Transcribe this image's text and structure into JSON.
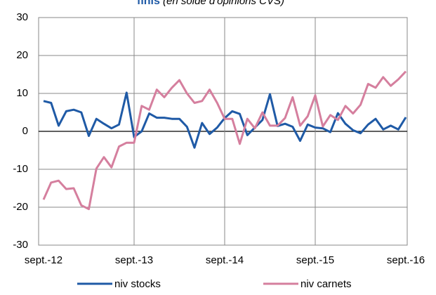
{
  "chart_data": {
    "type": "line",
    "title": "finis",
    "subtitle": "(en solde d'opinions CVS)",
    "categories": [
      "sept.-12",
      null,
      null,
      null,
      null,
      null,
      null,
      null,
      null,
      null,
      null,
      null,
      "sept.-13",
      null,
      null,
      null,
      null,
      null,
      null,
      null,
      null,
      null,
      null,
      null,
      "sept.-14",
      null,
      null,
      null,
      null,
      null,
      null,
      null,
      null,
      null,
      null,
      null,
      "sept.-15",
      null,
      null,
      null,
      null,
      null,
      null,
      null,
      null,
      null,
      null,
      null,
      "sept.-16"
    ],
    "series": [
      {
        "name": "niv stocks",
        "color": "#1f5aa6",
        "values": [
          8,
          7.5,
          1.5,
          5.3,
          5.7,
          5,
          -1.2,
          3.3,
          2,
          0.8,
          1.8,
          10.2,
          -1.5,
          0,
          4.7,
          3.6,
          3.6,
          3.3,
          3.3,
          1.2,
          -4.3,
          2.2,
          -0.7,
          1,
          3.5,
          5.3,
          4.6,
          -1,
          1,
          3,
          9.8,
          1.4,
          2,
          1.2,
          -2.5,
          1.8,
          1,
          0.8,
          -0.2,
          4.8,
          2,
          0.3,
          -0.5,
          1.8,
          3.3,
          0.5,
          1.5,
          0.5,
          3.7
        ]
      },
      {
        "name": "niv carnets",
        "color": "#d57f9e",
        "values": [
          -18,
          -13.5,
          -13,
          -15.2,
          -15,
          -19.5,
          -20.5,
          -9.8,
          -6.8,
          -9.5,
          -4,
          -3,
          -3,
          6.7,
          5.7,
          11,
          9,
          11.5,
          13.5,
          10,
          7.5,
          8,
          11,
          7.5,
          3.3,
          3.3,
          -3.3,
          3.3,
          0.8,
          5,
          1.5,
          1.5,
          3.5,
          9,
          1.5,
          4,
          9.5,
          1.3,
          4.3,
          3,
          6.7,
          4.7,
          7,
          12.5,
          11.5,
          14.3,
          12,
          13.7,
          15.8
        ]
      }
    ],
    "ylim": [
      -30,
      30
    ],
    "yticks": [
      -30,
      -20,
      -10,
      0,
      10,
      20,
      30
    ],
    "grid": true,
    "legend": "bottom"
  }
}
